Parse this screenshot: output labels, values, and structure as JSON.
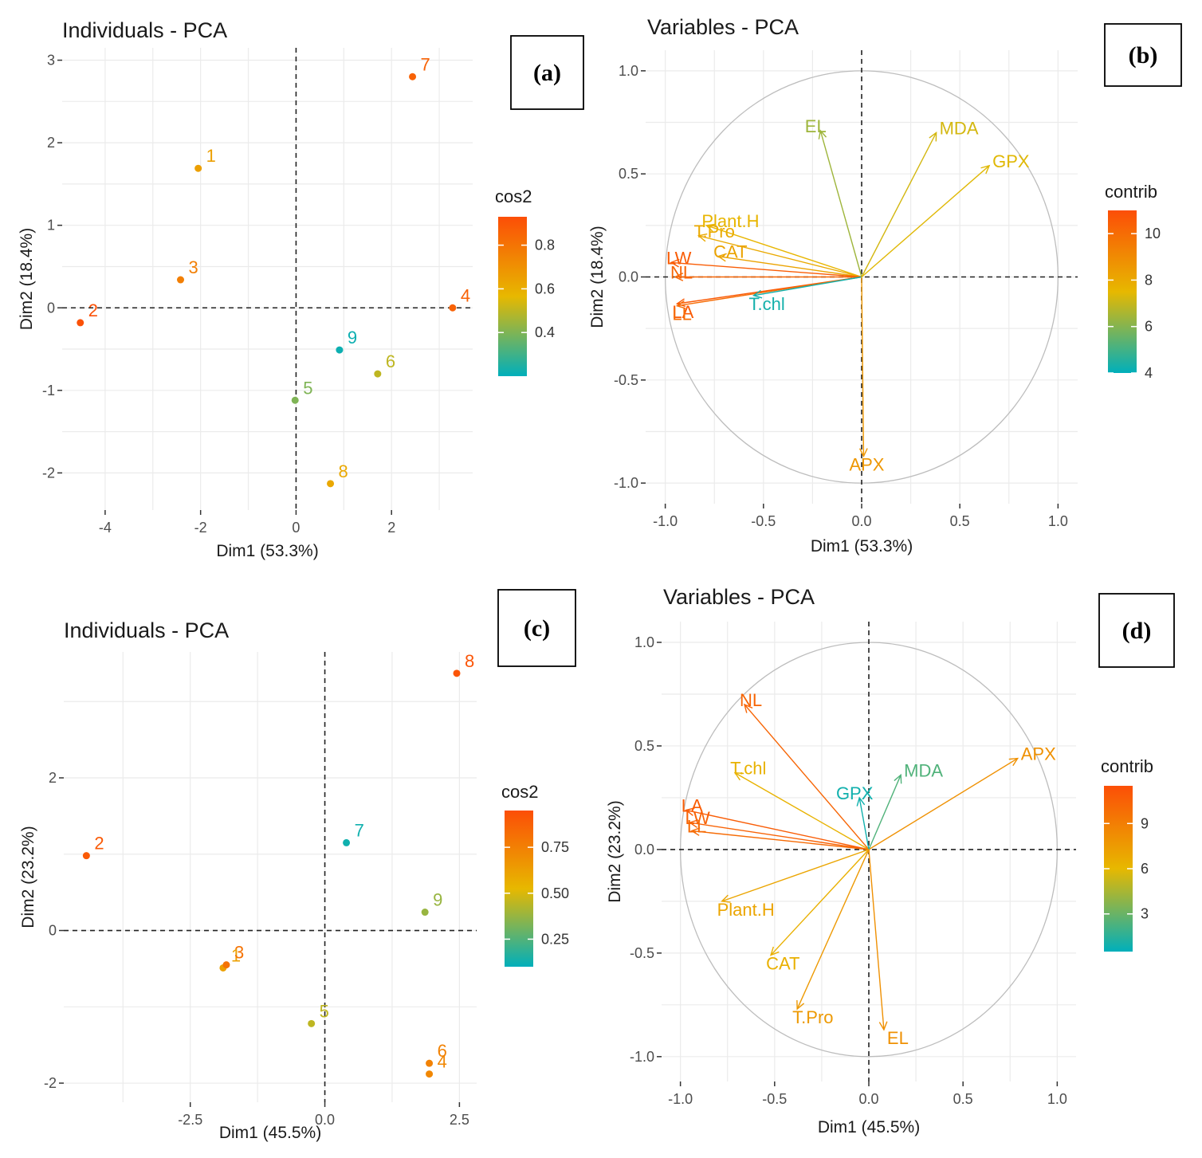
{
  "chart_data": [
    {
      "id": "a",
      "type": "scatter",
      "panel_label": "(a)",
      "title": "Individuals - PCA",
      "xlabel": "Dim1 (53.3%)",
      "ylabel": "Dim2 (18.4%)",
      "xlim": [
        -4.9,
        3.7
      ],
      "ylim": [
        -2.45,
        3.15
      ],
      "xticks": [
        -4,
        -2,
        0,
        2
      ],
      "xtick_labels": [
        "-4",
        "-2",
        "0",
        "2"
      ],
      "yticks": [
        -2,
        -1,
        0,
        1,
        2,
        3
      ],
      "ytick_labels": [
        "-2",
        "-1",
        "0",
        "1",
        "2",
        "3"
      ],
      "grid": true,
      "legend": {
        "title": "cos2",
        "position": "right",
        "range": [
          0.2,
          0.93
        ],
        "ticks": [
          0.4,
          0.6,
          0.8
        ],
        "tick_labels": [
          "0.4",
          "0.6",
          "0.8"
        ]
      },
      "points": [
        {
          "label": "1",
          "x": -2.05,
          "y": 1.69,
          "cos2": 0.65
        },
        {
          "label": "2",
          "x": -4.52,
          "y": -0.18,
          "cos2": 0.92
        },
        {
          "label": "3",
          "x": -2.42,
          "y": 0.34,
          "cos2": 0.76
        },
        {
          "label": "4",
          "x": 3.28,
          "y": 0.0,
          "cos2": 0.86
        },
        {
          "label": "5",
          "x": -0.02,
          "y": -1.12,
          "cos2": 0.4
        },
        {
          "label": "6",
          "x": 1.71,
          "y": -0.8,
          "cos2": 0.5
        },
        {
          "label": "7",
          "x": 2.44,
          "y": 2.8,
          "cos2": 0.86
        },
        {
          "label": "8",
          "x": 0.72,
          "y": -2.13,
          "cos2": 0.62
        },
        {
          "label": "9",
          "x": 0.91,
          "y": -0.51,
          "cos2": 0.22
        }
      ]
    },
    {
      "id": "b",
      "type": "scatter",
      "subtype": "correlation-circle",
      "panel_label": "(b)",
      "title": "Variables - PCA",
      "xlabel": "Dim1 (53.3%)",
      "ylabel": "Dim2 (18.4%)",
      "xlim": [
        -1.1,
        1.1
      ],
      "ylim": [
        -1.1,
        1.1
      ],
      "xticks": [
        -1.0,
        -0.5,
        0.0,
        0.5,
        1.0
      ],
      "xtick_labels": [
        "-1.0",
        "-0.5",
        "0.0",
        "0.5",
        "1.0"
      ],
      "yticks": [
        -1.0,
        -0.5,
        0.0,
        0.5,
        1.0
      ],
      "ytick_labels": [
        "-1.0",
        "-0.5",
        "0.0",
        "0.5",
        "1.0"
      ],
      "grid": true,
      "legend": {
        "title": "contrib",
        "position": "right",
        "range": [
          4,
          11
        ],
        "ticks": [
          4,
          6,
          8,
          10
        ],
        "tick_labels": [
          "4",
          "6",
          "8",
          "10"
        ]
      },
      "variables": [
        {
          "label": "EL",
          "x": -0.21,
          "y": 0.71,
          "contrib": 6.4
        },
        {
          "label": "MDA",
          "x": 0.38,
          "y": 0.7,
          "contrib": 7.2
        },
        {
          "label": "GPX",
          "x": 0.65,
          "y": 0.54,
          "contrib": 7.4
        },
        {
          "label": "T.Pro",
          "x": -0.83,
          "y": 0.2,
          "contrib": 8.0
        },
        {
          "label": "Plant.H",
          "x": -0.79,
          "y": 0.25,
          "contrib": 7.6
        },
        {
          "label": "CAT",
          "x": -0.73,
          "y": 0.1,
          "contrib": 8.2
        },
        {
          "label": "LW",
          "x": -0.97,
          "y": 0.07,
          "contrib": 10.5
        },
        {
          "label": "NL",
          "x": -0.95,
          "y": 0.0,
          "contrib": 10.2
        },
        {
          "label": "LA",
          "x": -0.94,
          "y": -0.13,
          "contrib": 10.6
        },
        {
          "label": "LL",
          "x": -0.94,
          "y": -0.14,
          "contrib": 10.0
        },
        {
          "label": "T.chl",
          "x": -0.55,
          "y": -0.09,
          "contrib": 4.3
        },
        {
          "label": "APX",
          "x": 0.01,
          "y": -0.87,
          "contrib": 8.6
        }
      ]
    },
    {
      "id": "c",
      "type": "scatter",
      "panel_label": "(c)",
      "title": "Individuals - PCA",
      "xlabel": "Dim1 (45.5%)",
      "ylabel": "Dim2 (23.2%)",
      "xlim": [
        -4.85,
        2.82
      ],
      "ylim": [
        -2.25,
        3.65
      ],
      "xticks": [
        -2.5,
        0.0,
        2.5
      ],
      "xtick_labels": [
        "-2.5",
        "0.0",
        "2.5"
      ],
      "yticks": [
        -2,
        0,
        2
      ],
      "ytick_labels": [
        "-2",
        "0",
        "2"
      ],
      "grid": true,
      "legend": {
        "title": "cos2",
        "position": "right",
        "range": [
          0.1,
          0.95
        ],
        "ticks": [
          0.25,
          0.5,
          0.75
        ],
        "tick_labels": [
          "0.25",
          "0.50",
          "0.75"
        ]
      },
      "points": [
        {
          "label": "1",
          "x": -1.89,
          "y": -0.49,
          "cos2": 0.62
        },
        {
          "label": "2",
          "x": -4.43,
          "y": 0.98,
          "cos2": 0.9
        },
        {
          "label": "3",
          "x": -1.83,
          "y": -0.45,
          "cos2": 0.8
        },
        {
          "label": "4",
          "x": 1.94,
          "y": -1.88,
          "cos2": 0.72
        },
        {
          "label": "5",
          "x": -0.25,
          "y": -1.22,
          "cos2": 0.45
        },
        {
          "label": "6",
          "x": 1.94,
          "y": -1.74,
          "cos2": 0.74
        },
        {
          "label": "7",
          "x": 0.4,
          "y": 1.15,
          "cos2": 0.13
        },
        {
          "label": "8",
          "x": 2.45,
          "y": 3.37,
          "cos2": 0.92
        },
        {
          "label": "9",
          "x": 1.86,
          "y": 0.24,
          "cos2": 0.38
        }
      ]
    },
    {
      "id": "d",
      "type": "scatter",
      "subtype": "correlation-circle",
      "panel_label": "(d)",
      "title": "Variables - PCA",
      "xlabel": "Dim1 (45.5%)",
      "ylabel": "Dim2 (23.2%)",
      "xlim": [
        -1.1,
        1.1
      ],
      "ylim": [
        -1.12,
        1.1
      ],
      "xticks": [
        -1.0,
        -0.5,
        0.0,
        0.5,
        1.0
      ],
      "xtick_labels": [
        "-1.0",
        "-0.5",
        "0.0",
        "0.5",
        "1.0"
      ],
      "yticks": [
        -1.0,
        -0.5,
        0.0,
        0.5,
        1.0
      ],
      "ytick_labels": [
        "-1.0",
        "-0.5",
        "0.0",
        "0.5",
        "1.0"
      ],
      "grid": true,
      "legend": {
        "title": "contrib",
        "position": "right",
        "range": [
          0.5,
          11.5
        ],
        "ticks": [
          3,
          6,
          9
        ],
        "tick_labels": [
          "3",
          "6",
          "9"
        ]
      },
      "variables": [
        {
          "label": "NL",
          "x": -0.66,
          "y": 0.7,
          "contrib": 10.3
        },
        {
          "label": "APX",
          "x": 0.79,
          "y": 0.44,
          "contrib": 8.0
        },
        {
          "label": "MDA",
          "x": 0.17,
          "y": 0.36,
          "contrib": 2.4
        },
        {
          "label": "T.chl",
          "x": -0.71,
          "y": 0.37,
          "contrib": 6.3
        },
        {
          "label": "GPX",
          "x": -0.05,
          "y": 0.25,
          "contrib": 0.9
        },
        {
          "label": "LW",
          "x": -0.95,
          "y": 0.13,
          "contrib": 10.4
        },
        {
          "label": "LA",
          "x": -0.97,
          "y": 0.19,
          "contrib": 10.7
        },
        {
          "label": "LL",
          "x": -0.94,
          "y": 0.09,
          "contrib": 10.0
        },
        {
          "label": "Plant.H",
          "x": -0.78,
          "y": -0.25,
          "contrib": 7.0
        },
        {
          "label": "CAT",
          "x": -0.52,
          "y": -0.51,
          "contrib": 6.4
        },
        {
          "label": "T.Pro",
          "x": -0.38,
          "y": -0.77,
          "contrib": 7.6
        },
        {
          "label": "EL",
          "x": 0.08,
          "y": -0.87,
          "contrib": 8.1
        }
      ]
    }
  ],
  "gradient_colors": {
    "low": "#00AFBB",
    "mid": "#E7B800",
    "high": "#FC4E07"
  }
}
